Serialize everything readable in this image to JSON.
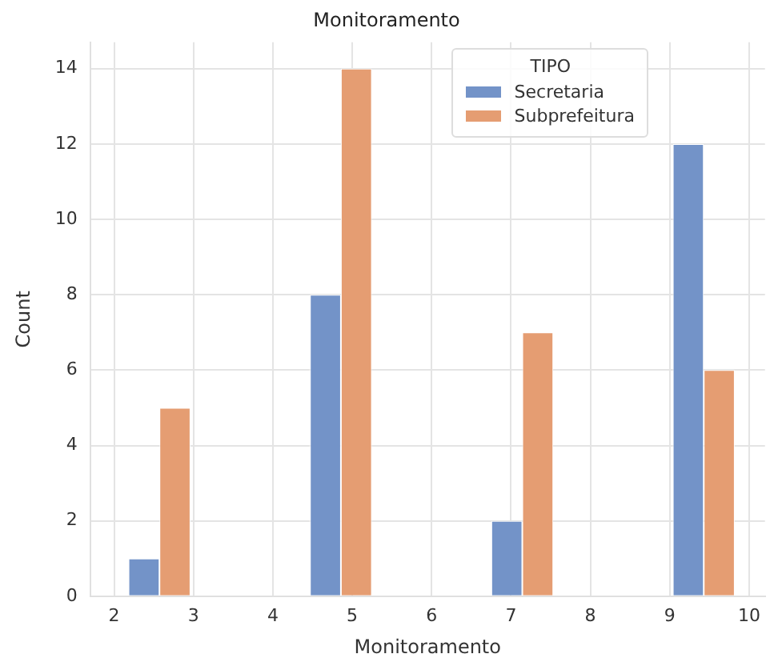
{
  "chart_data": {
    "type": "histogram",
    "title": "Monitoramento",
    "xlabel": "Monitoramento",
    "ylabel": "Count",
    "legend_title": "TIPO",
    "bins": [
      2,
      3.143,
      4.286,
      5.429,
      6.571,
      7.714,
      8.857,
      10
    ],
    "series": [
      {
        "name": "Secretaria",
        "color": "#7393c8",
        "values": [
          1,
          0,
          8,
          0,
          2,
          0,
          12
        ]
      },
      {
        "name": "Subprefeitura",
        "color": "#e59d72",
        "values": [
          5,
          0,
          14,
          0,
          7,
          0,
          6
        ]
      }
    ],
    "xlim": [
      1.7,
      10.2
    ],
    "ylim": [
      0,
      14.7
    ],
    "xticks": [
      2,
      3,
      4,
      5,
      6,
      7,
      8,
      9,
      10
    ],
    "yticks": [
      0,
      2,
      4,
      6,
      8,
      10,
      12,
      14
    ],
    "grid": true,
    "legend": "top right"
  }
}
